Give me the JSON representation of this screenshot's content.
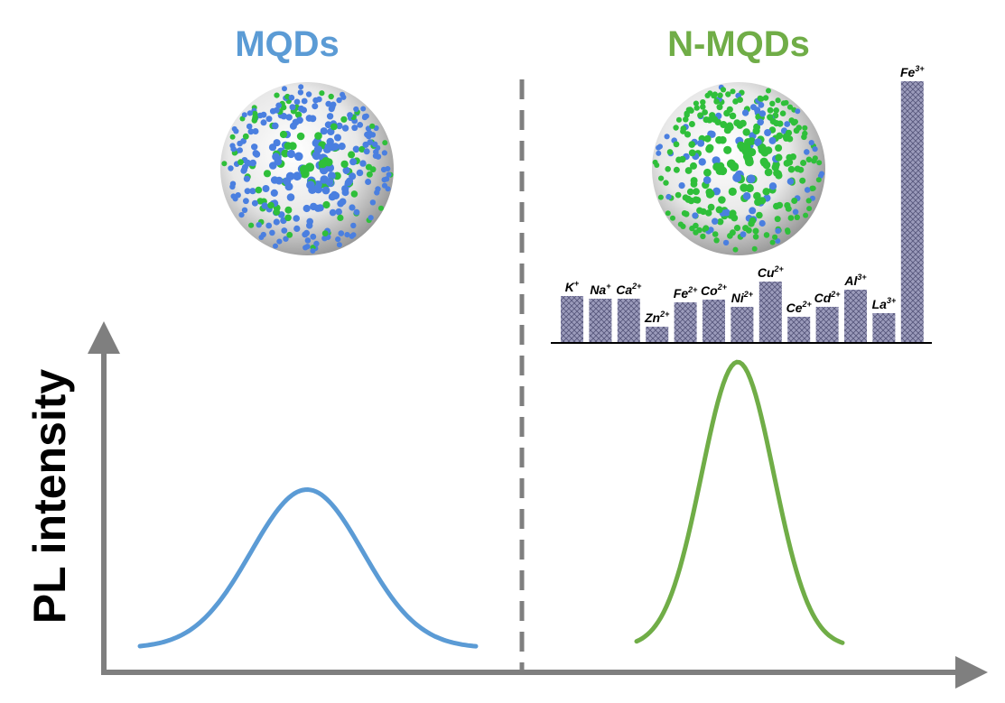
{
  "titles": {
    "left": "MQDs",
    "right": "N-MQDs"
  },
  "y_axis_label": "PL intensity",
  "colors": {
    "mqd": "#5b9bd5",
    "nmqd": "#70ad47",
    "axis": "#7f7f7f",
    "bar": "#8e8eae",
    "dot_blue": "#4a7fe0",
    "dot_green": "#2fbf3a"
  },
  "chart_data": {
    "type": "bar",
    "title": "",
    "xlabel": "",
    "ylabel": "",
    "categories": [
      {
        "base": "K",
        "charge": "+"
      },
      {
        "base": "Na",
        "charge": "+"
      },
      {
        "base": "Ca",
        "charge": "2+"
      },
      {
        "base": "Zn",
        "charge": "2+"
      },
      {
        "base": "Fe",
        "charge": "2+"
      },
      {
        "base": "Co",
        "charge": "2+"
      },
      {
        "base": "Ni",
        "charge": "2+"
      },
      {
        "base": "Cu",
        "charge": "2+"
      },
      {
        "base": "Ce",
        "charge": "2+"
      },
      {
        "base": "Cd",
        "charge": "2+"
      },
      {
        "base": "Al",
        "charge": "3+"
      },
      {
        "base": "La",
        "charge": "3+"
      },
      {
        "base": "Fe",
        "charge": "3+"
      }
    ],
    "values": [
      51,
      48,
      48,
      17,
      44,
      47,
      39,
      67,
      28,
      39,
      58,
      32,
      289
    ],
    "ylim": [
      0,
      300
    ]
  },
  "curves": {
    "mqd": {
      "peak": 0.45,
      "center": 340,
      "width": 62
    },
    "nmqd": {
      "peak": 0.81,
      "center": 817,
      "width": 40
    }
  }
}
